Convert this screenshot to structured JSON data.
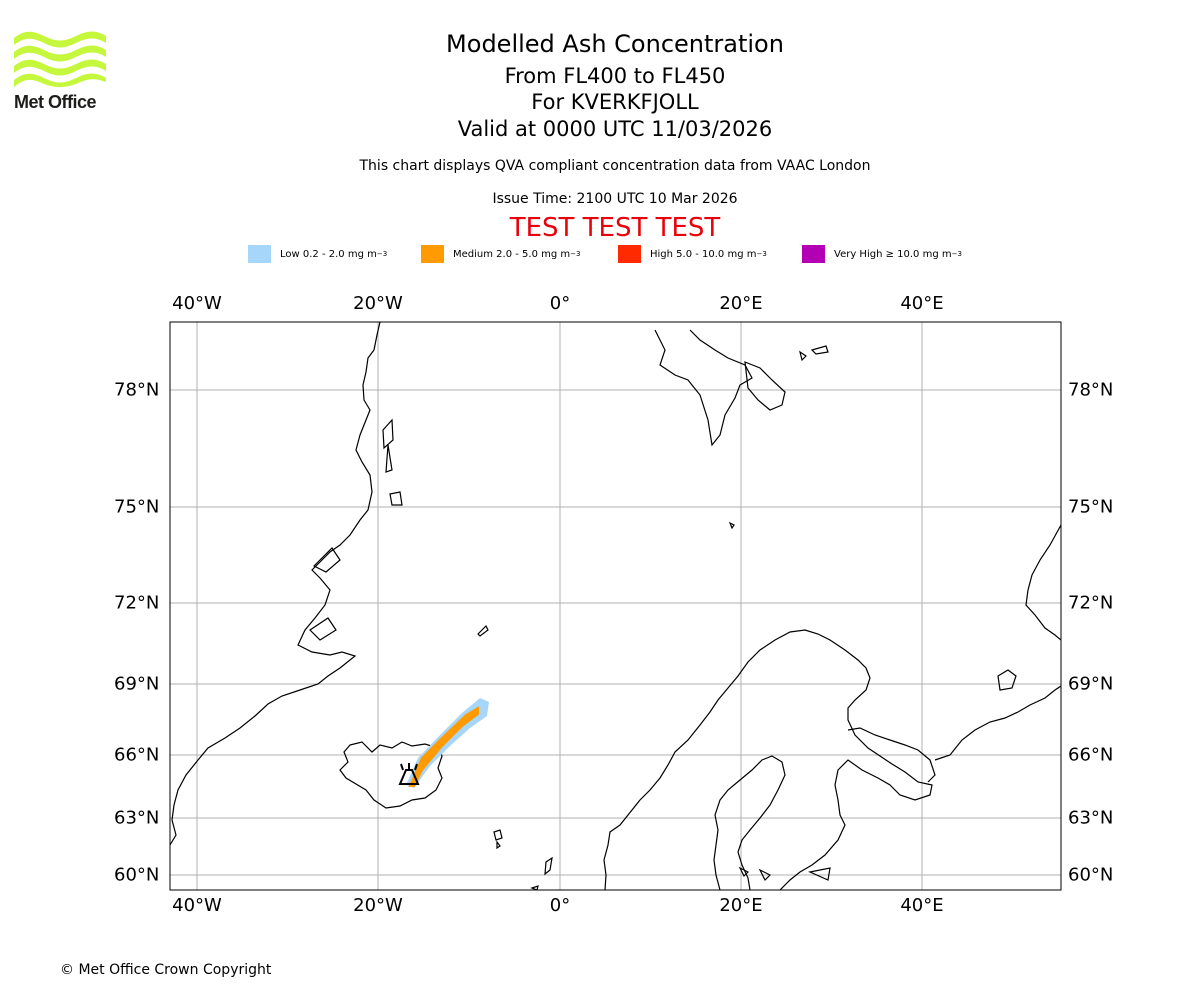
{
  "header": {
    "title": "Modelled Ash Concentration",
    "flight_levels": "From FL400 to FL450",
    "volcano_line": "For KVERKFJOLL",
    "valid_line": "Valid at 0000 UTC 11/03/2026",
    "disclaimer": "This chart displays QVA compliant concentration data from VAAC London",
    "issue_time": "Issue Time: 2100 UTC 10 Mar 2026",
    "test_banner": "TEST TEST TEST"
  },
  "logo": {
    "text": "Met Office",
    "icon": "met-office-wave-logo",
    "color": "#c5f73d"
  },
  "legend": [
    {
      "label": "Low 0.2 - 2.0 mg m",
      "exp": "−3",
      "color": "#a6d6fa"
    },
    {
      "label": "Medium 2.0 - 5.0 mg m",
      "exp": "−3",
      "color": "#ff9a00"
    },
    {
      "label": "High 5.0 - 10.0 mg m",
      "exp": "−3",
      "color": "#ff2a00"
    },
    {
      "label": "Very High  ≥  10.0 mg m",
      "exp": "−3",
      "color": "#b400b4"
    }
  ],
  "map": {
    "lon_ticks": [
      "40°W",
      "20°W",
      "0°",
      "20°E",
      "40°E"
    ],
    "lat_ticks": [
      "78°N",
      "75°N",
      "72°N",
      "69°N",
      "66°N",
      "63°N",
      "60°N"
    ],
    "volcano_symbol": "volcano-icon",
    "grid": true
  },
  "footer": {
    "copyright": "© Met Office Crown Copyright"
  }
}
